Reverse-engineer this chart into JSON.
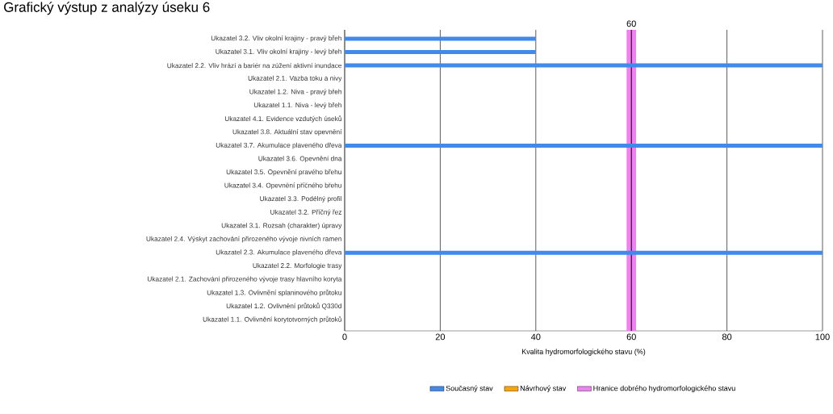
{
  "chart_data": {
    "type": "bar",
    "orientation": "horizontal",
    "title": "Grafický výstup z analýzy úseku 6",
    "xlabel": "Kvalita hydromorfologického stavu (%)",
    "categories": [
      "Ukazatel 3.2. Vliv okolní krajiny - pravý břeh",
      "Ukazatel 3.1. Vliv okolní krajiny - levý břeh",
      "Ukazatel 2.2. Vliv hrází a bariér na zúžení aktivní inundace",
      "Ukazatel 2.1. Vazba toku a nivy",
      "Ukazatel 1.2. Niva - pravý břeh",
      "Ukazatel 1.1. Niva - levý břeh",
      "Ukazatel 4.1. Evidence vzdutých úseků",
      "Ukazatel 3.8. Aktuální stav opevnění",
      "Ukazatel 3.7. Akumulace plaveného dřeva",
      "Ukazatel 3.6. Opevnění dna",
      "Ukazatel 3.5. Opevnění pravého břehu",
      "Ukazatel 3.4. Opevnění příčného břehu",
      "Ukazatel 3.3. Podélný profil",
      "Ukazatel 3.2. Příčný řez",
      "Ukazatel 3.1. Rozsah (charakter) úpravy",
      "Ukazatel 2.4. Výskyt zachování přirozeného vývoje nivních ramen",
      "Ukazatel 2.3. Akumulace plaveného dřeva",
      "Ukazatel 2.2. Morfologie trasy",
      "Ukazatel 2.1. Zachování přirozeného vývoje trasy hlavního koryta",
      "Ukazatel 1.3. Ovlivnění splaninového průtoku",
      "Ukazatel 1.2. Ovlivnění průtoků Q330d",
      "Ukazatel 1.1. Ovlivnění korytotvorných průtoků"
    ],
    "series": [
      {
        "name": "Současný stav",
        "color": "#4189ea",
        "values": [
          40,
          40,
          100,
          null,
          null,
          null,
          null,
          null,
          100,
          null,
          null,
          null,
          null,
          null,
          null,
          null,
          100,
          null,
          null,
          null,
          null,
          null
        ]
      },
      {
        "name": "Návrhový stav",
        "color": "#ffa500",
        "values": [
          null,
          null,
          null,
          null,
          null,
          null,
          null,
          null,
          null,
          null,
          null,
          null,
          null,
          null,
          null,
          null,
          null,
          null,
          null,
          null,
          null,
          null
        ]
      }
    ],
    "xlim": [
      0,
      100
    ],
    "xticks": [
      0,
      20,
      40,
      60,
      80,
      100
    ],
    "grid": "x",
    "bands": [
      {
        "axis": "x",
        "from": 59,
        "to": 61,
        "label": "Hranice dobrého hydromorfologického stavu",
        "color": "#ee82ee"
      }
    ],
    "ref_lines": [
      {
        "axis": "x",
        "value": 60,
        "label": "60"
      }
    ],
    "legend": "bottom"
  }
}
